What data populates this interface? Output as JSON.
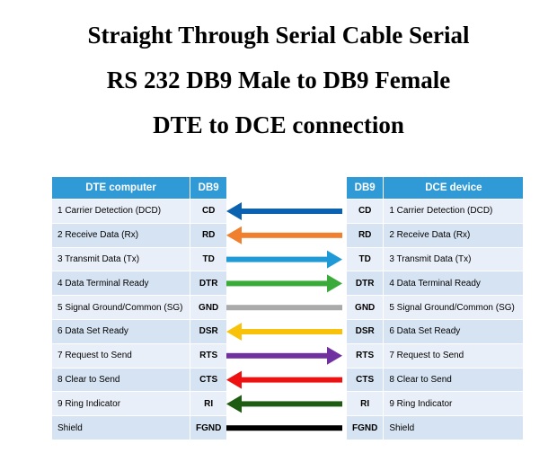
{
  "title_lines": [
    "Straight Through Serial Cable Serial",
    "RS 232 DB9 Male to DB9 Female",
    "DTE to DCE connection"
  ],
  "left_header": {
    "name": "DTE computer",
    "db9": "DB9"
  },
  "right_header": {
    "db9": "DB9",
    "name": "DCE device"
  },
  "rows": [
    {
      "name": "1 Carrier Detection (DCD)",
      "pin": "CD",
      "direction": "left",
      "color": "#0b62b0"
    },
    {
      "name": "2 Receive Data (Rx)",
      "pin": "RD",
      "direction": "left",
      "color": "#f07f2e"
    },
    {
      "name": "3 Transmit Data (Tx)",
      "pin": "TD",
      "direction": "right",
      "color": "#1f9ad6"
    },
    {
      "name": "4 Data Terminal Ready",
      "pin": "DTR",
      "direction": "right",
      "color": "#3aaa3a"
    },
    {
      "name": "5 Signal Ground/Common  (SG)",
      "pin": "GND",
      "direction": "none",
      "color": "#aaaaaa"
    },
    {
      "name": "6 Data Set Ready",
      "pin": "DSR",
      "direction": "left",
      "color": "#f8c20a"
    },
    {
      "name": "7 Request to Send",
      "pin": "RTS",
      "direction": "right",
      "color": "#7030a0"
    },
    {
      "name": "8 Clear to Send",
      "pin": "CTS",
      "direction": "left",
      "color": "#ee1111"
    },
    {
      "name": "9 Ring Indicator",
      "pin": "RI",
      "direction": "left",
      "color": "#1e5c12"
    },
    {
      "name": "Shield",
      "pin": "FGND",
      "direction": "none",
      "color": "#000000"
    }
  ]
}
